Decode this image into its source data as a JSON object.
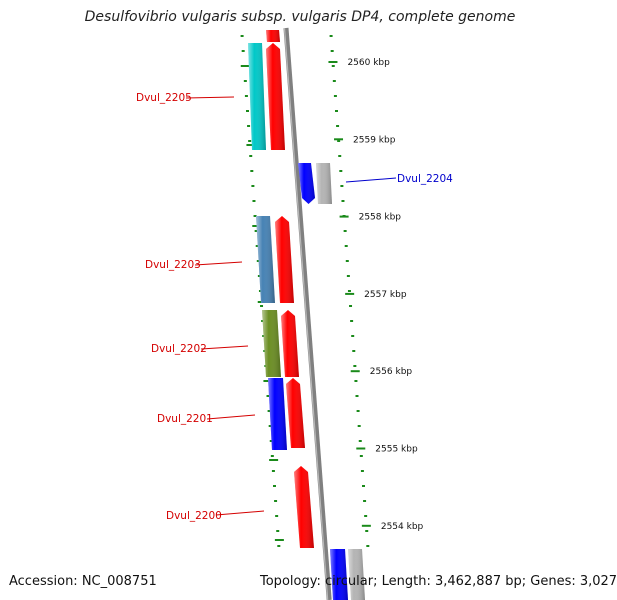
{
  "title": "Desulfovibrio vulgaris subsp. vulgaris DP4, complete genome",
  "footer": {
    "accession": "Accession: NC_008751",
    "summary": "Topology: circular; Length: 3,462,887 bp; Genes: 3,027"
  },
  "scale": {
    "unit": "kbp",
    "ticks": [
      {
        "kbp": 2560,
        "label": "2560 kbp"
      },
      {
        "kbp": 2559,
        "label": "2559 kbp"
      },
      {
        "kbp": 2558,
        "label": "2558 kbp"
      },
      {
        "kbp": 2557,
        "label": "2557 kbp"
      },
      {
        "kbp": 2556,
        "label": "2556 kbp"
      },
      {
        "kbp": 2555,
        "label": "2555 kbp"
      },
      {
        "kbp": 2554,
        "label": "2554 kbp"
      }
    ]
  },
  "genes": [
    {
      "label": "Dvul_2205",
      "color": "#d40000"
    },
    {
      "label": "Dvul_2204",
      "color": "#0000cc"
    },
    {
      "label": "Dvul_2203",
      "color": "#d40000"
    },
    {
      "label": "Dvul_2202",
      "color": "#d40000"
    },
    {
      "label": "Dvul_2201",
      "color": "#d40000"
    },
    {
      "label": "Dvul_2200",
      "color": "#d40000"
    }
  ],
  "colors": {
    "cds": "#ff0000",
    "cyan_feature": "#00c8c8",
    "steel_feature": "#4682b4",
    "olive_feature": "#6b8e23",
    "blue_feature": "#0000ff",
    "grey_feature": "#b4b4b4",
    "backbone": "#808080",
    "tick_marks": "#1a8a1a"
  }
}
